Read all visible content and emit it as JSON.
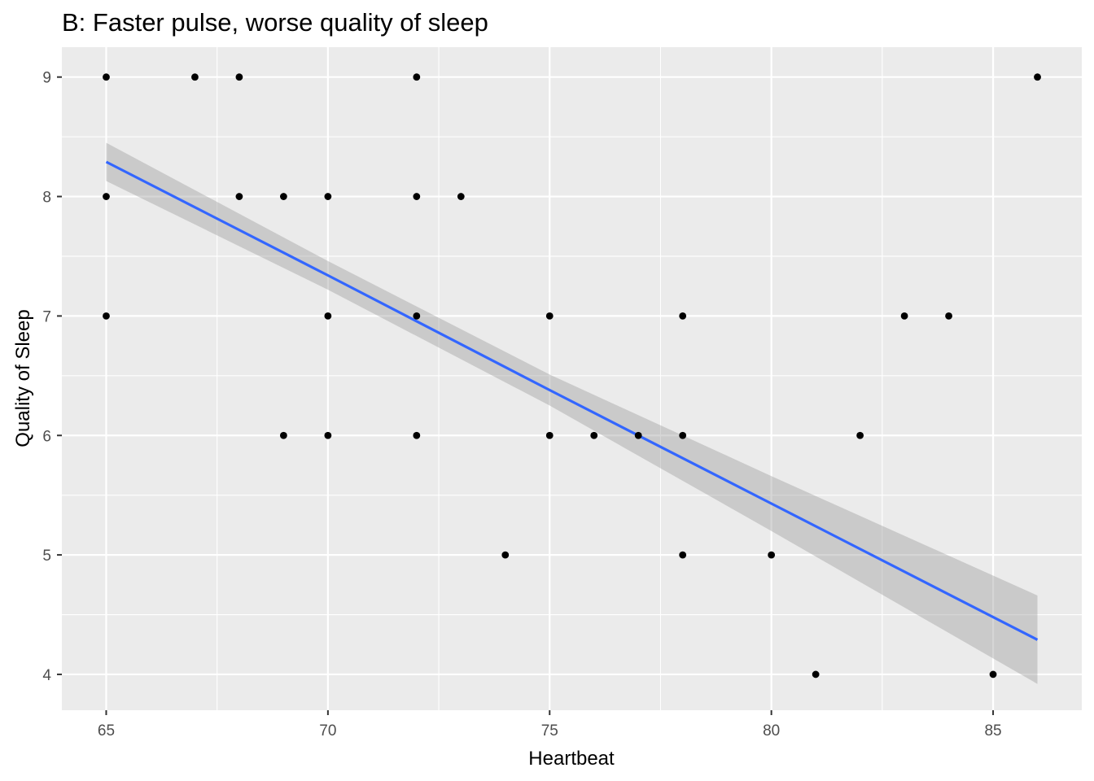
{
  "chart_data": {
    "type": "scatter",
    "title": "B: Faster pulse, worse quality of sleep",
    "xlabel": "Heartbeat",
    "ylabel": "Quality of Sleep",
    "xlim": [
      64,
      87
    ],
    "ylim": [
      3.7,
      9.25
    ],
    "xticks": [
      65,
      70,
      75,
      80,
      85
    ],
    "yticks": [
      4,
      5,
      6,
      7,
      8,
      9
    ],
    "grid": true,
    "colors": {
      "panel": "#ebebeb",
      "grid_major": "#ffffff",
      "point": "#000000",
      "line": "#3366ff",
      "band": "#999999"
    },
    "points": [
      {
        "x": 65,
        "y": 9
      },
      {
        "x": 67,
        "y": 9
      },
      {
        "x": 68,
        "y": 9
      },
      {
        "x": 72,
        "y": 9
      },
      {
        "x": 86,
        "y": 9
      },
      {
        "x": 65,
        "y": 8
      },
      {
        "x": 68,
        "y": 8
      },
      {
        "x": 69,
        "y": 8
      },
      {
        "x": 70,
        "y": 8
      },
      {
        "x": 72,
        "y": 8
      },
      {
        "x": 73,
        "y": 8
      },
      {
        "x": 65,
        "y": 7
      },
      {
        "x": 70,
        "y": 7
      },
      {
        "x": 72,
        "y": 7
      },
      {
        "x": 75,
        "y": 7
      },
      {
        "x": 78,
        "y": 7
      },
      {
        "x": 83,
        "y": 7
      },
      {
        "x": 84,
        "y": 7
      },
      {
        "x": 69,
        "y": 6
      },
      {
        "x": 70,
        "y": 6
      },
      {
        "x": 72,
        "y": 6
      },
      {
        "x": 75,
        "y": 6
      },
      {
        "x": 76,
        "y": 6
      },
      {
        "x": 77,
        "y": 6
      },
      {
        "x": 78,
        "y": 6
      },
      {
        "x": 82,
        "y": 6
      },
      {
        "x": 74,
        "y": 5
      },
      {
        "x": 78,
        "y": 5
      },
      {
        "x": 80,
        "y": 5
      },
      {
        "x": 81,
        "y": 4
      },
      {
        "x": 85,
        "y": 4
      }
    ],
    "fit": {
      "method": "lm",
      "x": [
        65,
        70,
        75,
        80,
        86
      ],
      "y": [
        8.29,
        7.34,
        6.38,
        5.43,
        4.29
      ],
      "lower": [
        8.13,
        7.22,
        6.25,
        5.2,
        3.92
      ],
      "upper": [
        8.45,
        7.46,
        6.51,
        5.66,
        4.66
      ]
    }
  }
}
